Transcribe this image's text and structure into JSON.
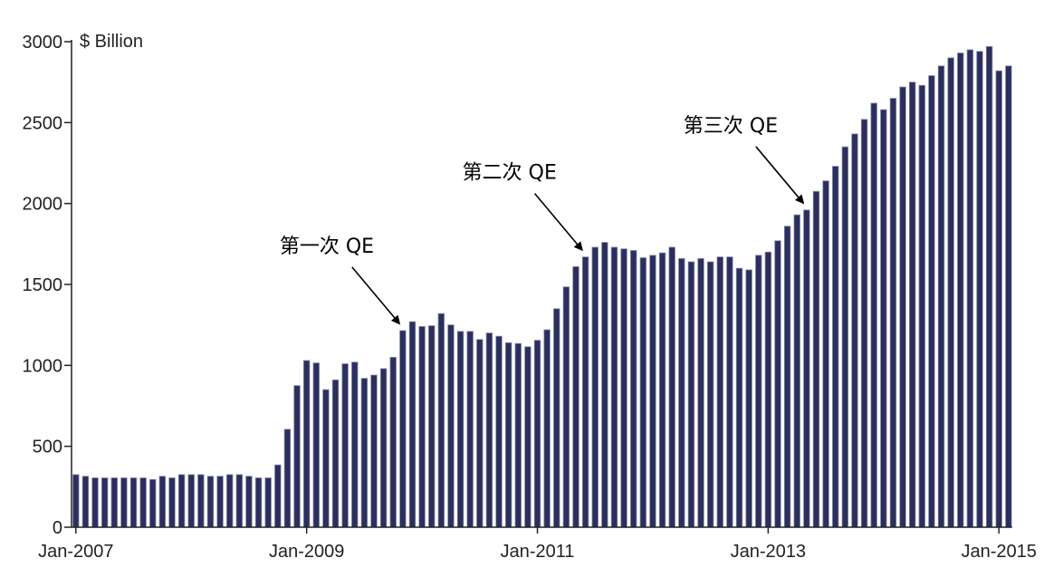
{
  "chart_data": {
    "type": "bar",
    "title": "",
    "ylabel": "$ Billion",
    "xlabel": "",
    "ylim": [
      0,
      3000
    ],
    "y_ticks": [
      0,
      500,
      1000,
      1500,
      2000,
      2500,
      3000
    ],
    "x_tick_labels": [
      "Jan-2007",
      "Jan-2009",
      "Jan-2011",
      "Jan-2013",
      "Jan-2015"
    ],
    "grid": false,
    "frequency": "monthly",
    "start_period": "Jan-2007",
    "values": [
      325,
      315,
      305,
      305,
      305,
      305,
      305,
      305,
      295,
      315,
      305,
      325,
      325,
      325,
      315,
      315,
      325,
      325,
      315,
      305,
      305,
      385,
      605,
      875,
      1030,
      1015,
      850,
      910,
      1010,
      1020,
      920,
      940,
      980,
      1050,
      1215,
      1270,
      1240,
      1245,
      1320,
      1250,
      1210,
      1210,
      1160,
      1200,
      1180,
      1140,
      1135,
      1115,
      1155,
      1220,
      1350,
      1485,
      1610,
      1670,
      1730,
      1760,
      1730,
      1720,
      1710,
      1665,
      1680,
      1695,
      1730,
      1660,
      1640,
      1660,
      1640,
      1670,
      1670,
      1600,
      1590,
      1680,
      1700,
      1770,
      1860,
      1930,
      1960,
      2075,
      2140,
      2230,
      2350,
      2430,
      2520,
      2620,
      2580,
      2650,
      2720,
      2750,
      2730,
      2790,
      2850,
      2900,
      2930,
      2950,
      2940,
      2970,
      2820,
      2850
    ],
    "bar_color": "#2b2f5e",
    "annotations": [
      {
        "text": "第一次 QE",
        "target_period": "Nov-2009"
      },
      {
        "text": "第二次 QE",
        "target_period": "Jun-2011"
      },
      {
        "text": "第三次 QE",
        "target_period": "May-2013"
      }
    ]
  }
}
